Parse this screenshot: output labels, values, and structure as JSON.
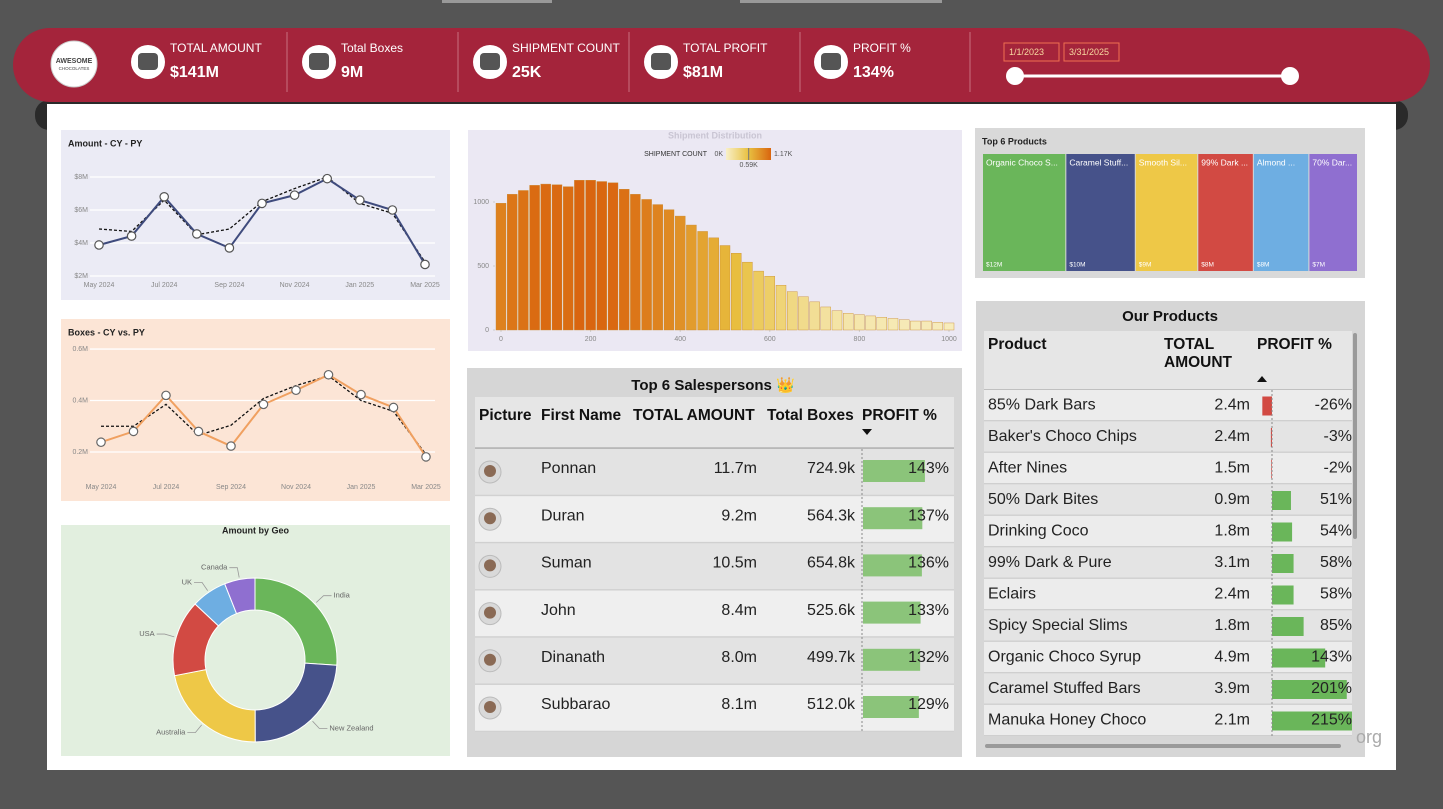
{
  "logo": {
    "line1": "AWESOME",
    "line2": "CHOCOLATES"
  },
  "kpis": [
    {
      "label": "TOTAL AMOUNT",
      "value": "$141M"
    },
    {
      "label": "Total Boxes",
      "value": "9M"
    },
    {
      "label": "SHIPMENT COUNT",
      "value": "25K"
    },
    {
      "label": "TOTAL PROFIT",
      "value": "$81M"
    },
    {
      "label": "PROFIT %",
      "value": "134%"
    }
  ],
  "date_range": {
    "start": "1/1/2023",
    "end": "3/31/2025"
  },
  "watermark": "org",
  "chart_data": [
    {
      "type": "line",
      "title": "Amount - CY - PY",
      "categories": [
        "May 2024",
        null,
        "Jul 2024",
        null,
        "Sep 2024",
        null,
        "Nov 2024",
        null,
        "Jan 2025",
        null,
        "Mar 2025"
      ],
      "series": [
        {
          "color": "#3f4b7d",
          "style": "solid",
          "markers": true,
          "values": [
            3.88,
            4.42,
            6.8,
            4.55,
            3.7,
            6.4,
            6.9,
            7.9,
            6.6,
            6.0,
            2.7
          ]
        },
        {
          "color": "#111111",
          "style": "dashed",
          "markers": false,
          "values": [
            4.85,
            4.7,
            6.6,
            4.5,
            4.85,
            6.5,
            7.3,
            8.0,
            6.4,
            5.8,
            2.85
          ]
        }
      ],
      "ylim": [
        1.8,
        8.6
      ],
      "yticks": [
        {
          "value": 2,
          "label": "$2M"
        },
        {
          "value": 4,
          "label": "$4M"
        },
        {
          "value": 6,
          "label": "$6M"
        },
        {
          "value": 8,
          "label": "$8M"
        }
      ],
      "grid": true
    },
    {
      "type": "line",
      "title": "Boxes - CY vs. PY",
      "categories": [
        "May 2024",
        null,
        "Jul 2024",
        null,
        "Sep 2024",
        null,
        "Nov 2024",
        null,
        "Jan 2025",
        null,
        "Mar 2025"
      ],
      "series": [
        {
          "color": "#f0a060",
          "style": "solid",
          "markers": true,
          "values": [
            0.238,
            0.28,
            0.42,
            0.28,
            0.223,
            0.385,
            0.44,
            0.5,
            0.423,
            0.373,
            0.181
          ]
        },
        {
          "color": "#111111",
          "style": "dashed",
          "markers": false,
          "values": [
            0.3,
            0.3,
            0.385,
            0.265,
            0.304,
            0.408,
            0.458,
            0.496,
            0.4,
            0.358,
            0.19
          ]
        }
      ],
      "ylim": [
        0.16,
        0.62
      ],
      "yticks": [
        {
          "value": 0.2,
          "label": "0.2M"
        },
        {
          "value": 0.4,
          "label": "0.4M"
        },
        {
          "value": 0.6,
          "label": "0.6M"
        }
      ],
      "grid": true
    },
    {
      "type": "pie",
      "donut": true,
      "title": "Amount by Geo",
      "categories": [
        "India",
        "New Zealand",
        "Australia",
        "USA",
        "UK",
        "Canada"
      ],
      "values": [
        36.7,
        33.8,
        31.0,
        21.2,
        9.9,
        8.5
      ],
      "colors": [
        "#6ab65a",
        "#46528a",
        "#eec847",
        "#d24a43",
        "#6eaee2",
        "#8f6fd0"
      ]
    },
    {
      "type": "histogram",
      "title": "Shipment Distribution",
      "bins": [
        -12.5,
        12.5,
        37.5,
        62.5,
        87.5,
        112.5,
        137.5,
        162.5,
        187.5,
        212.5,
        237.5,
        262.5,
        287.5,
        312.5,
        337.5,
        362.5,
        387.5,
        412.5,
        437.5,
        462.5,
        487.5,
        512.5,
        537.5,
        562.5,
        587.5,
        612.5,
        637.5,
        662.5,
        687.5,
        712.5,
        737.5,
        762.5,
        787.5,
        812.5,
        837.5,
        862.5,
        887.5,
        912.5,
        937.5,
        962.5,
        987.5,
        1012.5
      ],
      "values": [
        990,
        1060,
        1090,
        1130,
        1140,
        1135,
        1120,
        1170,
        1170,
        1160,
        1150,
        1100,
        1060,
        1020,
        980,
        940,
        890,
        820,
        770,
        720,
        660,
        600,
        530,
        460,
        420,
        350,
        300,
        260,
        220,
        180,
        150,
        130,
        120,
        110,
        100,
        90,
        80,
        70,
        70,
        60,
        55
      ],
      "xlim": [
        -12.5,
        1012.5
      ],
      "xticks": [
        0,
        200,
        400,
        600,
        800,
        1000
      ],
      "ylim": [
        0,
        1250
      ],
      "yticks": [
        0,
        500,
        1000
      ],
      "colorbar": {
        "label": "SHIPMENT COUNT",
        "colors": [
          "#f8f0c8",
          "#e8c040",
          "#d9650f"
        ],
        "ticks": [
          {
            "value": 0,
            "label": "0K"
          },
          {
            "value": 590,
            "label": "0.59K"
          },
          {
            "value": 1170,
            "label": "1.17K"
          }
        ]
      }
    },
    {
      "type": "treemap",
      "title": "Top 6 Products",
      "categories": [
        "Organic Choco S...",
        "Caramel Stuff...",
        "Smooth Sil...",
        "99% Dark ...",
        "Almond ...",
        "70% Dar..."
      ],
      "values": [
        12,
        10,
        9,
        8,
        8,
        7
      ],
      "value_labels": [
        "$12M",
        "$10M",
        "$9M",
        "$8M",
        "$8M",
        "$7M"
      ],
      "colors": [
        "#6ab65a",
        "#46528a",
        "#eec847",
        "#d24a43",
        "#6eaee2",
        "#8f6fd0"
      ]
    }
  ],
  "salespersons": {
    "title": "Top 6 Salespersons 👑",
    "columns": [
      "Picture",
      "First Name",
      "TOTAL AMOUNT",
      "Total Boxes",
      "PROFIT %"
    ],
    "rows": [
      {
        "first_name": "Ponnan",
        "total_amount": "11.7m",
        "total_boxes": "724.9k",
        "profit_pct": "143%"
      },
      {
        "first_name": "Duran",
        "total_amount": "9.2m",
        "total_boxes": "564.3k",
        "profit_pct": "137%"
      },
      {
        "first_name": "Suman",
        "total_amount": "10.5m",
        "total_boxes": "654.8k",
        "profit_pct": "136%"
      },
      {
        "first_name": "John",
        "total_amount": "8.4m",
        "total_boxes": "525.6k",
        "profit_pct": "133%"
      },
      {
        "first_name": "Dinanath",
        "total_amount": "8.0m",
        "total_boxes": "499.7k",
        "profit_pct": "132%"
      },
      {
        "first_name": "Subbarao",
        "total_amount": "8.1m",
        "total_boxes": "512.0k",
        "profit_pct": "129%"
      }
    ]
  },
  "products": {
    "title": "Our Products",
    "columns": [
      "Product",
      "TOTAL AMOUNT",
      "PROFIT %"
    ],
    "rows": [
      {
        "product": "85% Dark Bars",
        "total_amount": "2.4m",
        "profit_pct": "-26%"
      },
      {
        "product": "Baker's Choco Chips",
        "total_amount": "2.4m",
        "profit_pct": "-3%"
      },
      {
        "product": "After Nines",
        "total_amount": "1.5m",
        "profit_pct": "-2%"
      },
      {
        "product": "50% Dark Bites",
        "total_amount": "0.9m",
        "profit_pct": "51%"
      },
      {
        "product": "Drinking Coco",
        "total_amount": "1.8m",
        "profit_pct": "54%"
      },
      {
        "product": "99% Dark & Pure",
        "total_amount": "3.1m",
        "profit_pct": "58%"
      },
      {
        "product": "Eclairs",
        "total_amount": "2.4m",
        "profit_pct": "58%"
      },
      {
        "product": "Spicy Special Slims",
        "total_amount": "1.8m",
        "profit_pct": "85%"
      },
      {
        "product": "Organic Choco Syrup",
        "total_amount": "4.9m",
        "profit_pct": "143%"
      },
      {
        "product": "Caramel Stuffed Bars",
        "total_amount": "3.9m",
        "profit_pct": "201%"
      },
      {
        "product": "Manuka Honey Choco",
        "total_amount": "2.1m",
        "profit_pct": "215%"
      }
    ]
  }
}
